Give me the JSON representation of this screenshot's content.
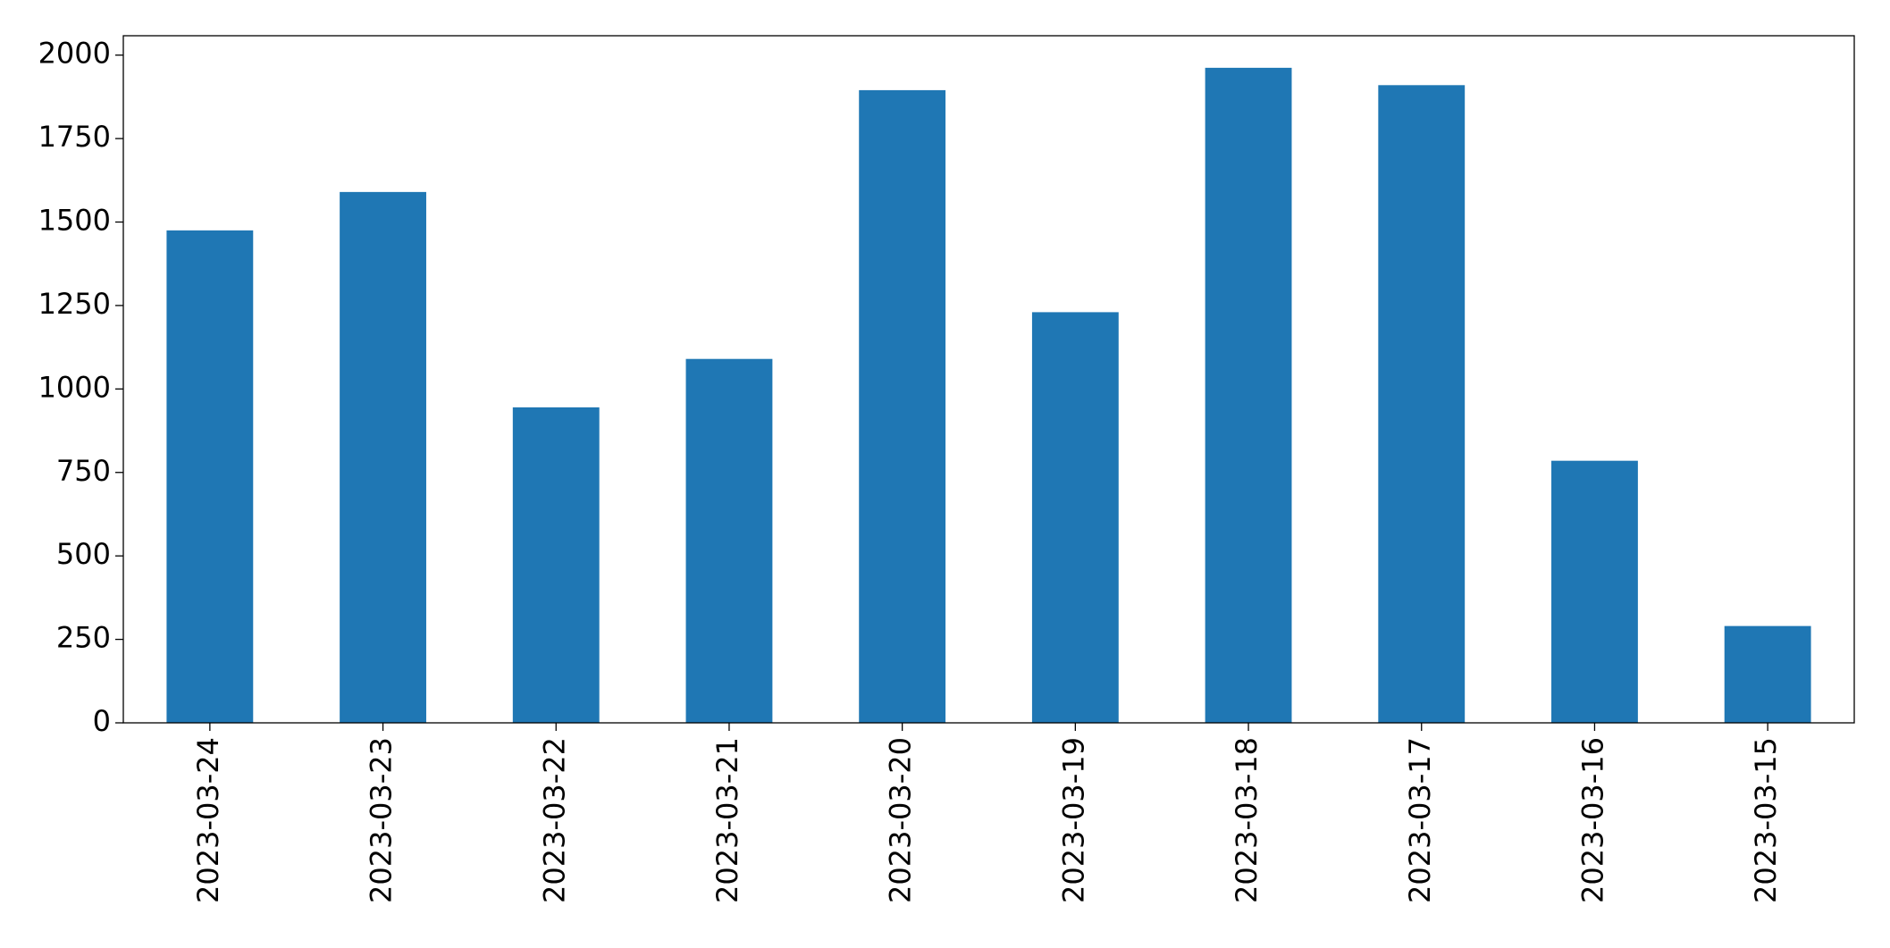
{
  "chart_data": {
    "type": "bar",
    "categories": [
      "2023-03-24",
      "2023-03-23",
      "2023-03-22",
      "2023-03-21",
      "2023-03-20",
      "2023-03-19",
      "2023-03-18",
      "2023-03-17",
      "2023-03-16",
      "2023-03-15"
    ],
    "values": [
      1475,
      1590,
      945,
      1090,
      1895,
      1230,
      1962,
      1910,
      785,
      290
    ],
    "color": "#1f77b4",
    "ylim": [
      0,
      2058
    ],
    "yticks": [
      0,
      250,
      500,
      750,
      1000,
      1250,
      1500,
      1750,
      2000
    ],
    "grid": false
  }
}
